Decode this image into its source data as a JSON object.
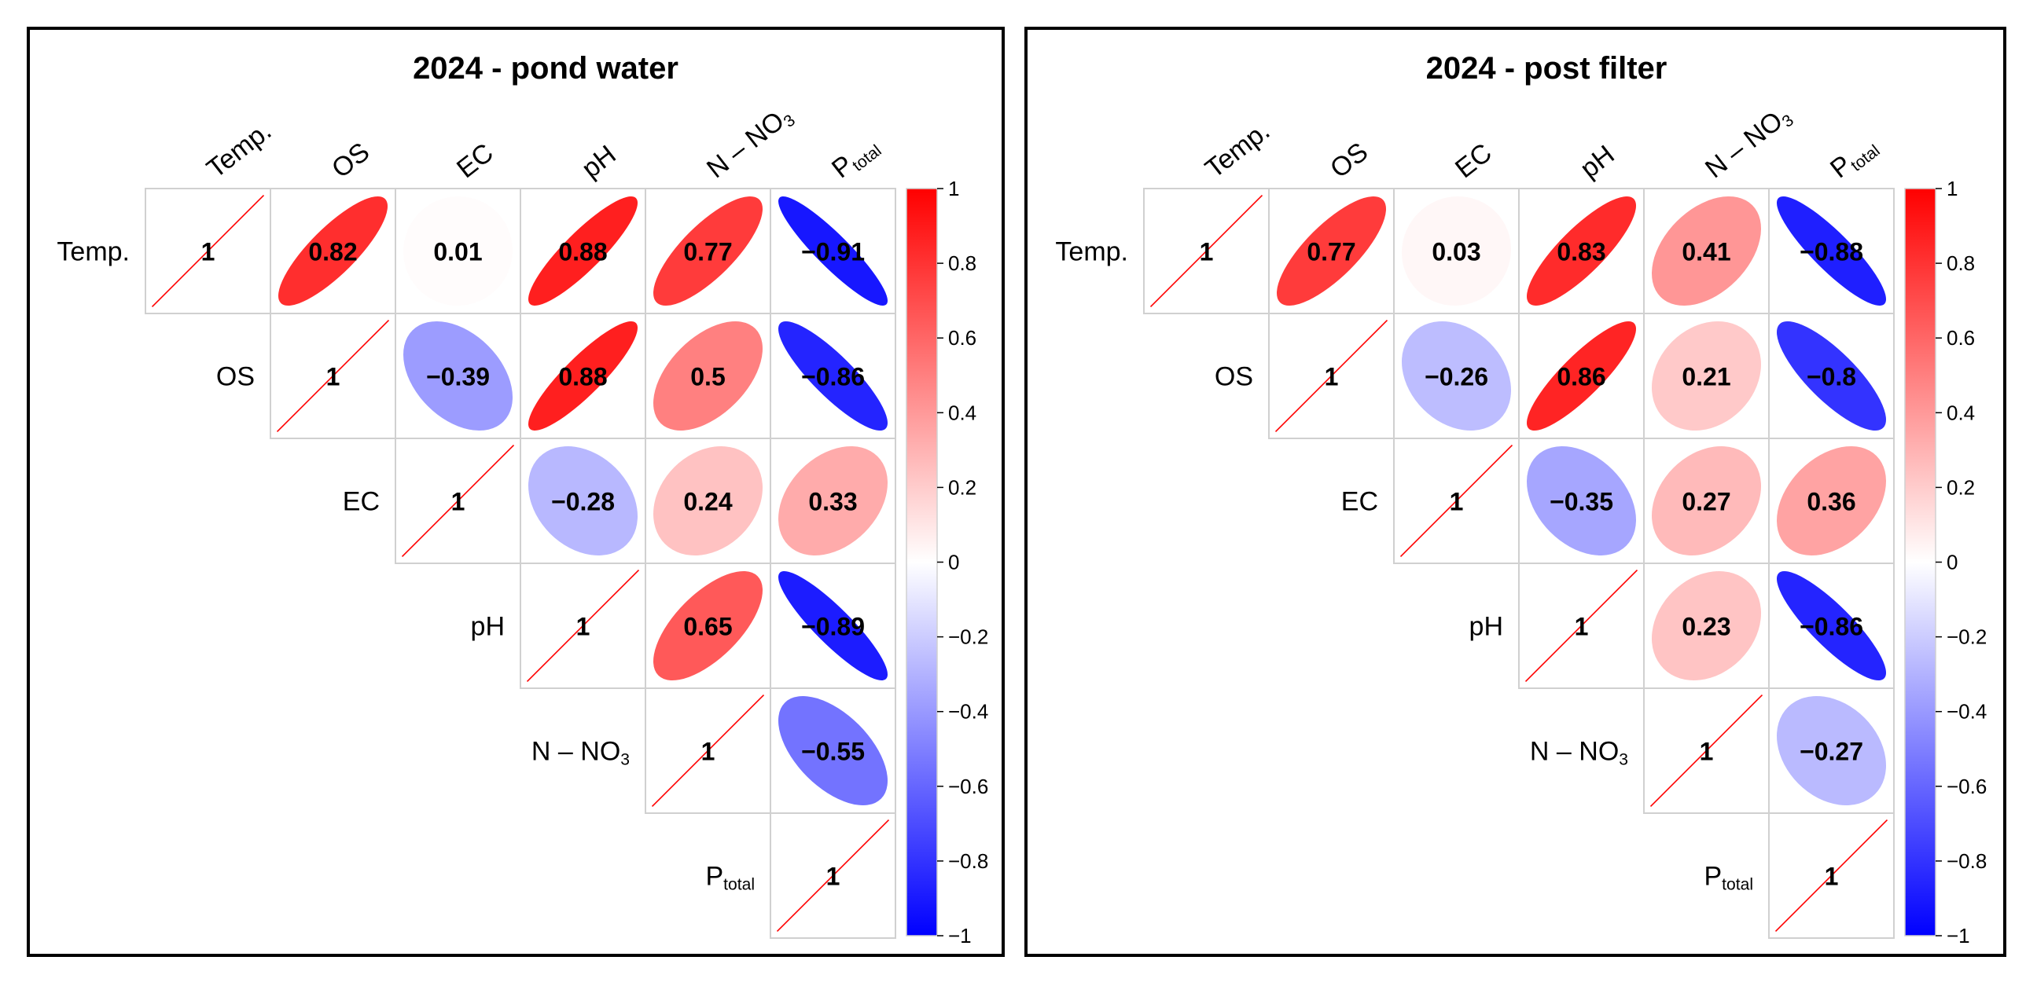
{
  "chart_data": [
    {
      "type": "heatmap",
      "title": "2024 - pond water",
      "variables": [
        "Temp.",
        "OS",
        "EC",
        "pH",
        "N – NO3",
        "Ptotal"
      ],
      "layout": "upper-triangle",
      "matrix": [
        [
          1,
          0.82,
          0.01,
          0.88,
          0.77,
          -0.91
        ],
        [
          null,
          1,
          -0.39,
          0.88,
          0.5,
          -0.86
        ],
        [
          null,
          null,
          1,
          -0.28,
          0.24,
          0.33
        ],
        [
          null,
          null,
          null,
          1,
          0.65,
          -0.89
        ],
        [
          null,
          null,
          null,
          null,
          1,
          -0.55
        ],
        [
          null,
          null,
          null,
          null,
          null,
          1
        ]
      ],
      "value_labels": [
        [
          "1",
          "0.82",
          "0.01",
          "0.88",
          "0.77",
          "−0.91"
        ],
        [
          "",
          "1",
          "−0.39",
          "0.88",
          "0.5",
          "−0.86"
        ],
        [
          "",
          "",
          "1",
          "−0.28",
          "0.24",
          "0.33"
        ],
        [
          "",
          "",
          "",
          "1",
          "0.65",
          "−0.89"
        ],
        [
          "",
          "",
          "",
          "",
          "1",
          "−0.55"
        ],
        [
          "",
          "",
          "",
          "",
          "",
          "1"
        ]
      ],
      "colorbar": {
        "range": [
          -1,
          1
        ],
        "ticks": [
          "1",
          "0.8",
          "0.6",
          "0.4",
          "0.2",
          "0",
          "−0.2",
          "−0.4",
          "−0.6",
          "−0.8",
          "−1"
        ],
        "tick_values": [
          1,
          0.8,
          0.6,
          0.4,
          0.2,
          0,
          -0.2,
          -0.4,
          -0.6,
          -0.8,
          -1
        ],
        "colors": {
          "positive": "#ff0000",
          "zero": "#ffffff",
          "negative": "#0000ff"
        }
      }
    },
    {
      "type": "heatmap",
      "title": "2024 - post filter",
      "variables": [
        "Temp.",
        "OS",
        "EC",
        "pH",
        "N – NO3",
        "Ptotal"
      ],
      "layout": "upper-triangle",
      "matrix": [
        [
          1,
          0.77,
          0.03,
          0.83,
          0.41,
          -0.88
        ],
        [
          null,
          1,
          -0.26,
          0.86,
          0.21,
          -0.8
        ],
        [
          null,
          null,
          1,
          -0.35,
          0.27,
          0.36
        ],
        [
          null,
          null,
          null,
          1,
          0.23,
          -0.86
        ],
        [
          null,
          null,
          null,
          null,
          1,
          -0.27
        ],
        [
          null,
          null,
          null,
          null,
          null,
          1
        ]
      ],
      "value_labels": [
        [
          "1",
          "0.77",
          "0.03",
          "0.83",
          "0.41",
          "−0.88"
        ],
        [
          "",
          "1",
          "−0.26",
          "0.86",
          "0.21",
          "−0.8"
        ],
        [
          "",
          "",
          "1",
          "−0.35",
          "0.27",
          "0.36"
        ],
        [
          "",
          "",
          "",
          "1",
          "0.23",
          "−0.86"
        ],
        [
          "",
          "",
          "",
          "",
          "1",
          "−0.27"
        ],
        [
          "",
          "",
          "",
          "",
          "",
          "1"
        ]
      ],
      "colorbar": {
        "range": [
          -1,
          1
        ],
        "ticks": [
          "1",
          "0.8",
          "0.6",
          "0.4",
          "0.2",
          "0",
          "−0.2",
          "−0.4",
          "−0.6",
          "−0.8",
          "−1"
        ],
        "tick_values": [
          1,
          0.8,
          0.6,
          0.4,
          0.2,
          0,
          -0.2,
          -0.4,
          -0.6,
          -0.8,
          -1
        ],
        "colors": {
          "positive": "#ff0000",
          "zero": "#ffffff",
          "negative": "#0000ff"
        }
      }
    }
  ]
}
